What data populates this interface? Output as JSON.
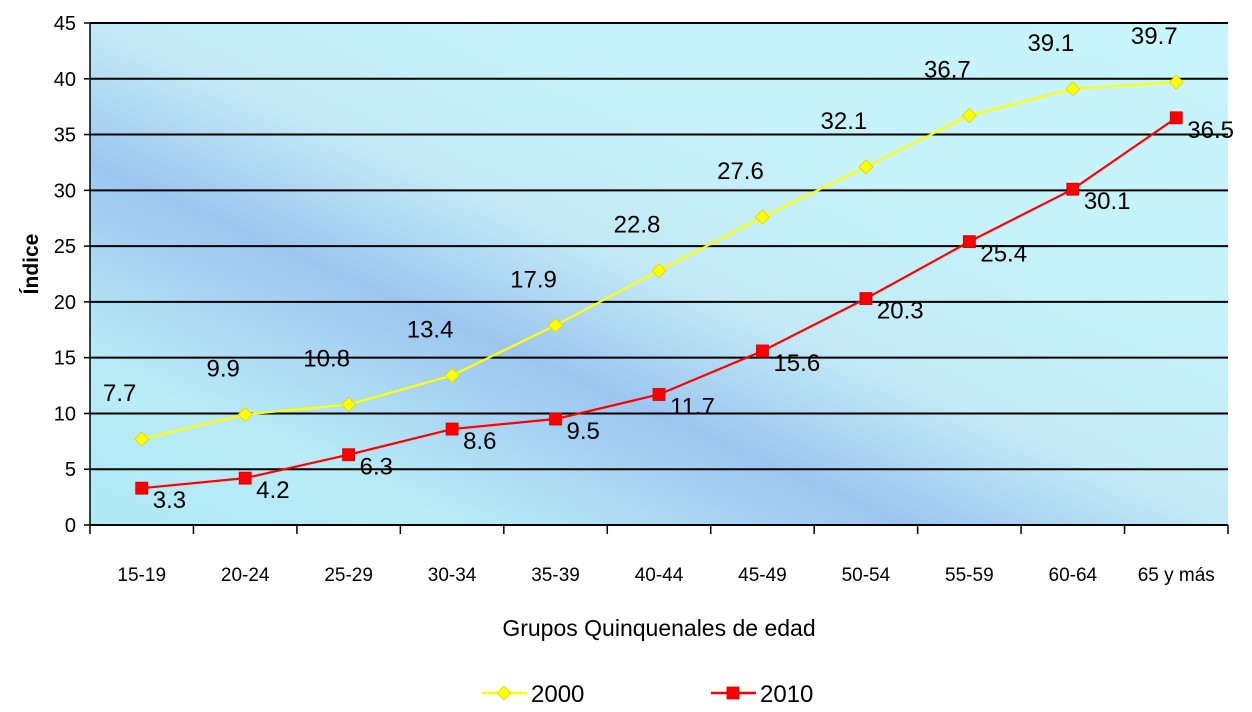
{
  "chart_data": {
    "type": "line",
    "title": "",
    "xlabel": "Grupos Quinquenales de edad",
    "ylabel": "Índice",
    "categories": [
      "15-19",
      "20-24",
      "25-29",
      "30-34",
      "35-39",
      "40-44",
      "45-49",
      "50-54",
      "55-59",
      "60-64",
      "65 y más"
    ],
    "ylim": [
      0,
      45
    ],
    "yticks": [
      "0",
      "5",
      "10",
      "15",
      "20",
      "25",
      "30",
      "35",
      "40",
      "45"
    ],
    "grid": true,
    "legend_position": "bottom",
    "series": [
      {
        "name": "2000",
        "color": "#ffff00",
        "marker": "diamond",
        "values": [
          7.7,
          9.9,
          10.8,
          13.4,
          17.9,
          22.8,
          27.6,
          32.1,
          36.7,
          39.1,
          39.7
        ],
        "labels": [
          "7.7",
          "9.9",
          "10.8",
          "13.4",
          "17.9",
          "22.8",
          "27.6",
          "32.1",
          "36.7",
          "39.1",
          "39.7"
        ],
        "label_position": "above"
      },
      {
        "name": "2010",
        "color": "#ff0000",
        "marker": "square",
        "values": [
          3.3,
          4.2,
          6.3,
          8.6,
          9.5,
          11.7,
          15.6,
          20.3,
          25.4,
          30.1,
          36.5
        ],
        "labels": [
          "3.3",
          "4.2",
          "6.3",
          "8.6",
          "9.5",
          "11.7",
          "15.6",
          "20.3",
          "25.4",
          "30.1",
          "36.5"
        ],
        "label_position": "right"
      }
    ]
  }
}
